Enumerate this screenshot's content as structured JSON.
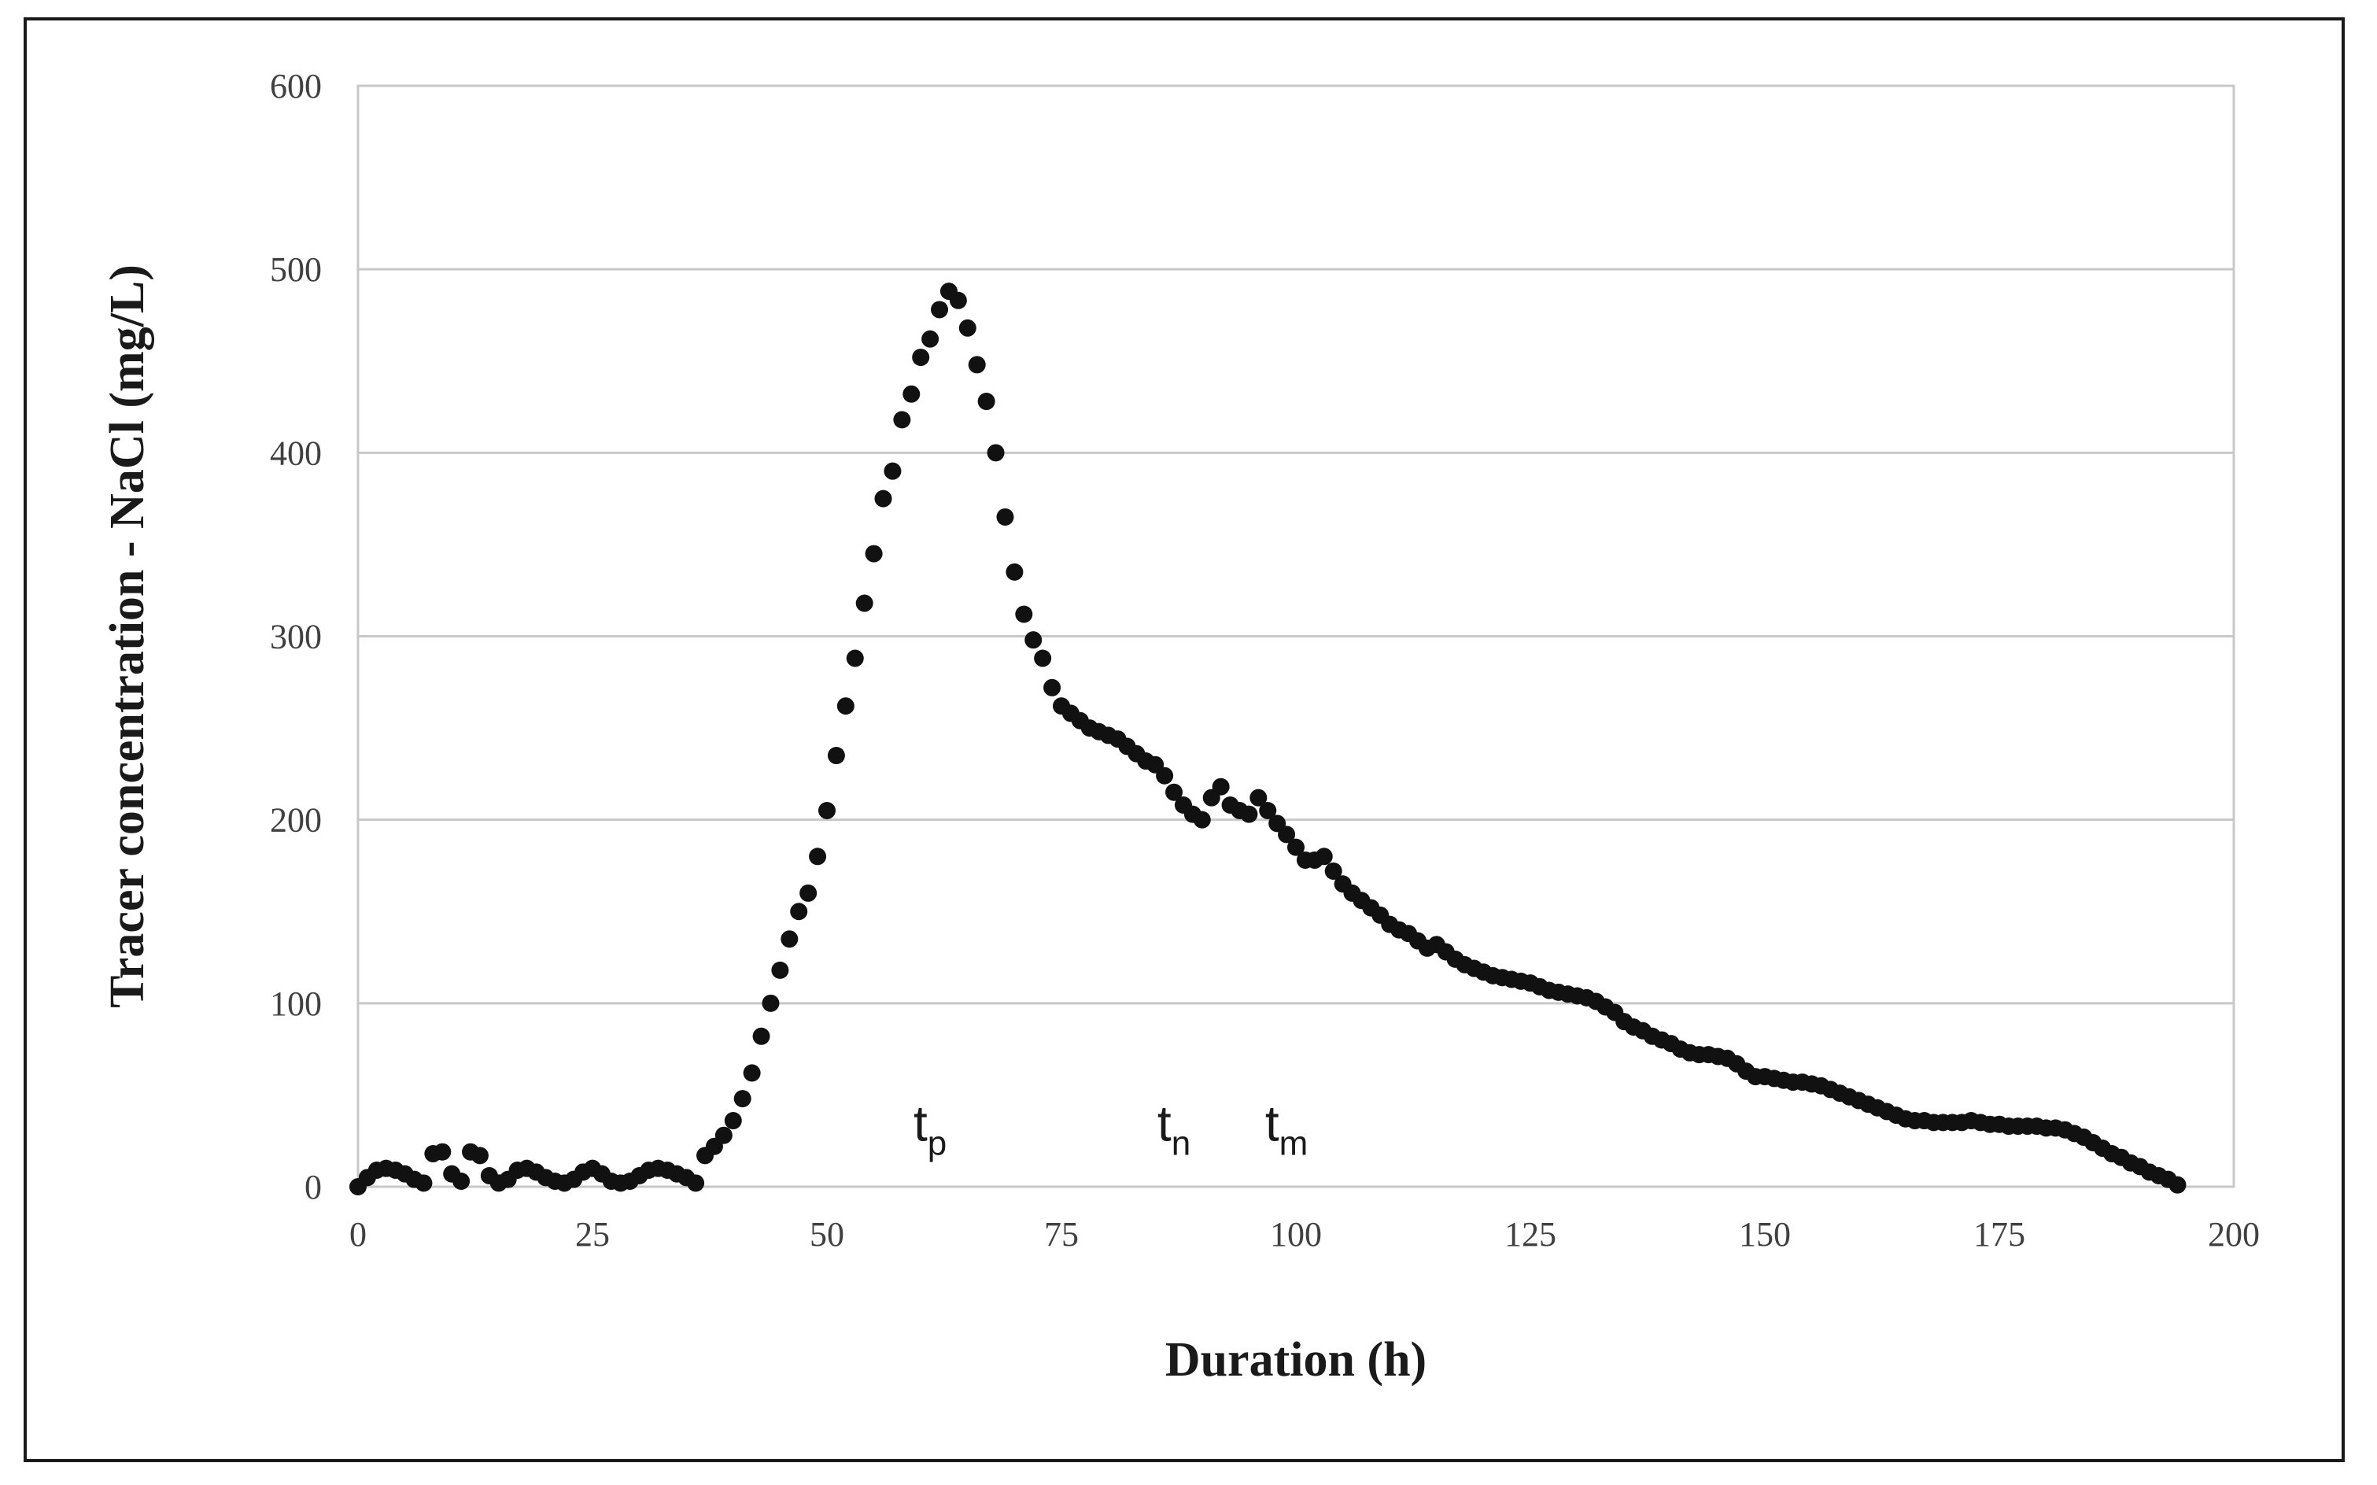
{
  "chart_data": {
    "type": "scatter",
    "title": "",
    "xlabel": "Duration (h)",
    "ylabel": "Tracer concentration - NaCl (mg/L)",
    "xlim": [
      0,
      200
    ],
    "ylim": [
      0,
      600
    ],
    "x_ticks": [
      0,
      25,
      50,
      75,
      100,
      125,
      150,
      175,
      200
    ],
    "y_ticks": [
      0,
      100,
      200,
      300,
      400,
      500,
      600
    ],
    "grid": "horizontal",
    "legend": "none",
    "marker_color": "#111111",
    "annotations": [
      {
        "base": "t",
        "sub": "p",
        "x": 61
      },
      {
        "base": "t",
        "sub": "n",
        "x": 87
      },
      {
        "base": "t",
        "sub": "m",
        "x": 99
      }
    ],
    "series": [
      {
        "points": [
          [
            0,
            0
          ],
          [
            1,
            5
          ],
          [
            2,
            9
          ],
          [
            3,
            10
          ],
          [
            4,
            9
          ],
          [
            5,
            7
          ],
          [
            6,
            4
          ],
          [
            7,
            2
          ],
          [
            8,
            18
          ],
          [
            9,
            19
          ],
          [
            10,
            7
          ],
          [
            11,
            3
          ],
          [
            12,
            19
          ],
          [
            13,
            17
          ],
          [
            14,
            6
          ],
          [
            15,
            2
          ],
          [
            16,
            4
          ],
          [
            17,
            9
          ],
          [
            18,
            10
          ],
          [
            19,
            8
          ],
          [
            20,
            5
          ],
          [
            21,
            3
          ],
          [
            22,
            2
          ],
          [
            23,
            4
          ],
          [
            24,
            8
          ],
          [
            25,
            10
          ],
          [
            26,
            7
          ],
          [
            27,
            3
          ],
          [
            28,
            2
          ],
          [
            29,
            3
          ],
          [
            30,
            6
          ],
          [
            31,
            9
          ],
          [
            32,
            10
          ],
          [
            33,
            9
          ],
          [
            34,
            7
          ],
          [
            35,
            5
          ],
          [
            36,
            2
          ],
          [
            37,
            17
          ],
          [
            38,
            22
          ],
          [
            39,
            28
          ],
          [
            40,
            36
          ],
          [
            41,
            48
          ],
          [
            42,
            62
          ],
          [
            43,
            82
          ],
          [
            44,
            100
          ],
          [
            45,
            118
          ],
          [
            46,
            135
          ],
          [
            47,
            150
          ],
          [
            48,
            160
          ],
          [
            49,
            180
          ],
          [
            50,
            205
          ],
          [
            51,
            235
          ],
          [
            52,
            262
          ],
          [
            53,
            288
          ],
          [
            54,
            318
          ],
          [
            55,
            345
          ],
          [
            56,
            375
          ],
          [
            57,
            390
          ],
          [
            58,
            418
          ],
          [
            59,
            432
          ],
          [
            60,
            452
          ],
          [
            61,
            462
          ],
          [
            62,
            478
          ],
          [
            63,
            488
          ],
          [
            64,
            483
          ],
          [
            65,
            468
          ],
          [
            66,
            448
          ],
          [
            67,
            428
          ],
          [
            68,
            400
          ],
          [
            69,
            365
          ],
          [
            70,
            335
          ],
          [
            71,
            312
          ],
          [
            72,
            298
          ],
          [
            73,
            288
          ],
          [
            74,
            272
          ],
          [
            75,
            262
          ],
          [
            76,
            258
          ],
          [
            77,
            254
          ],
          [
            78,
            250
          ],
          [
            79,
            248
          ],
          [
            80,
            246
          ],
          [
            81,
            244
          ],
          [
            82,
            240
          ],
          [
            83,
            236
          ],
          [
            84,
            232
          ],
          [
            85,
            230
          ],
          [
            86,
            224
          ],
          [
            87,
            215
          ],
          [
            88,
            208
          ],
          [
            89,
            203
          ],
          [
            90,
            200
          ],
          [
            91,
            212
          ],
          [
            92,
            218
          ],
          [
            93,
            208
          ],
          [
            94,
            205
          ],
          [
            95,
            203
          ],
          [
            96,
            212
          ],
          [
            97,
            205
          ],
          [
            98,
            198
          ],
          [
            99,
            192
          ],
          [
            100,
            185
          ],
          [
            101,
            178
          ],
          [
            102,
            178
          ],
          [
            103,
            180
          ],
          [
            104,
            172
          ],
          [
            105,
            165
          ],
          [
            106,
            160
          ],
          [
            107,
            156
          ],
          [
            108,
            152
          ],
          [
            109,
            148
          ],
          [
            110,
            143
          ],
          [
            111,
            140
          ],
          [
            112,
            138
          ],
          [
            113,
            134
          ],
          [
            114,
            130
          ],
          [
            115,
            132
          ],
          [
            116,
            128
          ],
          [
            117,
            124
          ],
          [
            118,
            121
          ],
          [
            119,
            119
          ],
          [
            120,
            117
          ],
          [
            121,
            115
          ],
          [
            122,
            114
          ],
          [
            123,
            113
          ],
          [
            124,
            112
          ],
          [
            125,
            111
          ],
          [
            126,
            109
          ],
          [
            127,
            107
          ],
          [
            128,
            106
          ],
          [
            129,
            105
          ],
          [
            130,
            104
          ],
          [
            131,
            103
          ],
          [
            132,
            101
          ],
          [
            133,
            98
          ],
          [
            134,
            95
          ],
          [
            135,
            90
          ],
          [
            136,
            87
          ],
          [
            137,
            85
          ],
          [
            138,
            82
          ],
          [
            139,
            80
          ],
          [
            140,
            78
          ],
          [
            141,
            75
          ],
          [
            142,
            73
          ],
          [
            143,
            72
          ],
          [
            144,
            72
          ],
          [
            145,
            71
          ],
          [
            146,
            70
          ],
          [
            147,
            67
          ],
          [
            148,
            63
          ],
          [
            149,
            60
          ],
          [
            150,
            60
          ],
          [
            151,
            59
          ],
          [
            152,
            58
          ],
          [
            153,
            57
          ],
          [
            154,
            57
          ],
          [
            155,
            56
          ],
          [
            156,
            55
          ],
          [
            157,
            53
          ],
          [
            158,
            51
          ],
          [
            159,
            49
          ],
          [
            160,
            47
          ],
          [
            161,
            45
          ],
          [
            162,
            43
          ],
          [
            163,
            41
          ],
          [
            164,
            39
          ],
          [
            165,
            37
          ],
          [
            166,
            36
          ],
          [
            167,
            36
          ],
          [
            168,
            35
          ],
          [
            169,
            35
          ],
          [
            170,
            35
          ],
          [
            171,
            35
          ],
          [
            172,
            36
          ],
          [
            173,
            35
          ],
          [
            174,
            34
          ],
          [
            175,
            34
          ],
          [
            176,
            33
          ],
          [
            177,
            33
          ],
          [
            178,
            33
          ],
          [
            179,
            33
          ],
          [
            180,
            32
          ],
          [
            181,
            32
          ],
          [
            182,
            31
          ],
          [
            183,
            29
          ],
          [
            184,
            27
          ],
          [
            185,
            24
          ],
          [
            186,
            21
          ],
          [
            187,
            18
          ],
          [
            188,
            16
          ],
          [
            189,
            13
          ],
          [
            190,
            11
          ],
          [
            191,
            8
          ],
          [
            192,
            6
          ],
          [
            193,
            4
          ],
          [
            194,
            1
          ]
        ]
      }
    ]
  }
}
